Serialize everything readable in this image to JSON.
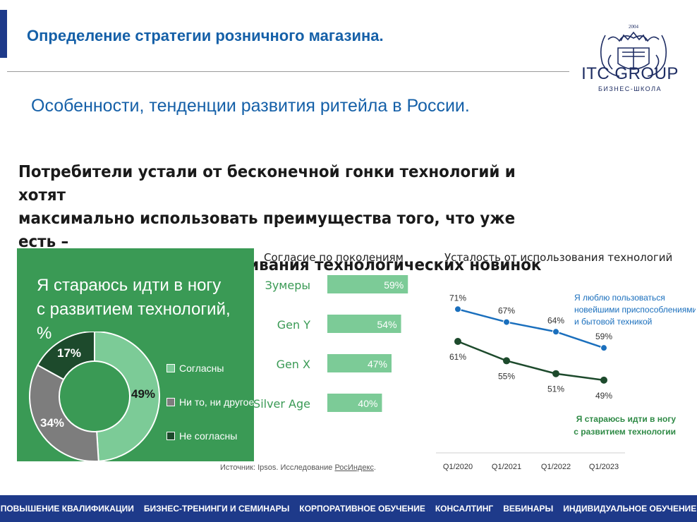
{
  "header": {
    "title": "Определение стратегии розничного магазина.",
    "subtitle": "Особенности, тенденции развития ритейла в России."
  },
  "logo": {
    "year": "2004",
    "name": "ITC GROUP",
    "tagline": "БИЗНЕС-ШКОЛА"
  },
  "slide": {
    "headline_lines": [
      "Потребители устали от бесконечной гонки технологий и хотят",
      "максимально использовать преимущества того, что уже есть –",
      "вместо бесконечного осваивания технологических новинок"
    ],
    "source_text": "Источник: Ipsos. Исследование ",
    "source_link": "РосИндекс",
    "source_end": "."
  },
  "footer": {
    "items": [
      "ПОВЫШЕНИЕ КВАЛИФИКАЦИИ",
      "БИЗНЕС-ТРЕНИНГИ И СЕМИНАРЫ",
      "КОРПОРАТИВНОЕ ОБУЧЕНИЕ",
      "КОНСАЛТИНГ",
      "ВЕБИНАРЫ",
      "ИНДИВИДУАЛЬНОЕ ОБУЧЕНИЕ"
    ]
  },
  "colors": {
    "panel": "#3a9a55",
    "agree": "#7ccb97",
    "neutral": "#7d7d7d",
    "disagree": "#1d4a2c",
    "bar": "#7ccb97",
    "line_blue": "#1a6fbd",
    "line_green": "#1d4a2c",
    "title_blue": "#1560a8"
  },
  "chart_data": [
    {
      "type": "pie",
      "title_lines": [
        "Я стараюсь идти в ногу",
        "с развитием технологий, %"
      ],
      "slices": [
        {
          "label": "Согласны",
          "value": 49,
          "value_label": "49%"
        },
        {
          "label": "Ни то, ни другое",
          "value": 34,
          "value_label": "34%"
        },
        {
          "label": "Не согласны",
          "value": 17,
          "value_label": "17%"
        }
      ]
    },
    {
      "type": "bar",
      "title": "Согласие по поколениям",
      "categories": [
        "Зумеры",
        "Gen Y",
        "Gen X",
        "Silver Age"
      ],
      "values": [
        59,
        54,
        47,
        40
      ],
      "value_labels": [
        "59%",
        "54%",
        "47%",
        "40%"
      ]
    },
    {
      "type": "line",
      "title": "Усталость от использования технологий",
      "x": [
        "Q1/2020",
        "Q1/2021",
        "Q1/2022",
        "Q1/2023"
      ],
      "series": [
        {
          "name": "Я люблю пользоваться новейшими приспособлениями и бытовой техникой",
          "name_lines": [
            "Я люблю пользоваться",
            "новейшими приспособлениями",
            "и бытовой техникой"
          ],
          "values": [
            71,
            67,
            64,
            59
          ],
          "value_labels": [
            "71%",
            "67%",
            "64%",
            "59%"
          ]
        },
        {
          "name": "Я стараюсь идти в ногу с развитием технологии",
          "name_lines": [
            "Я стараюсь идти в ногу",
            "с развитием технологии"
          ],
          "values": [
            61,
            55,
            51,
            49
          ],
          "value_labels": [
            "61%",
            "55%",
            "51%",
            "49%"
          ]
        }
      ]
    }
  ]
}
